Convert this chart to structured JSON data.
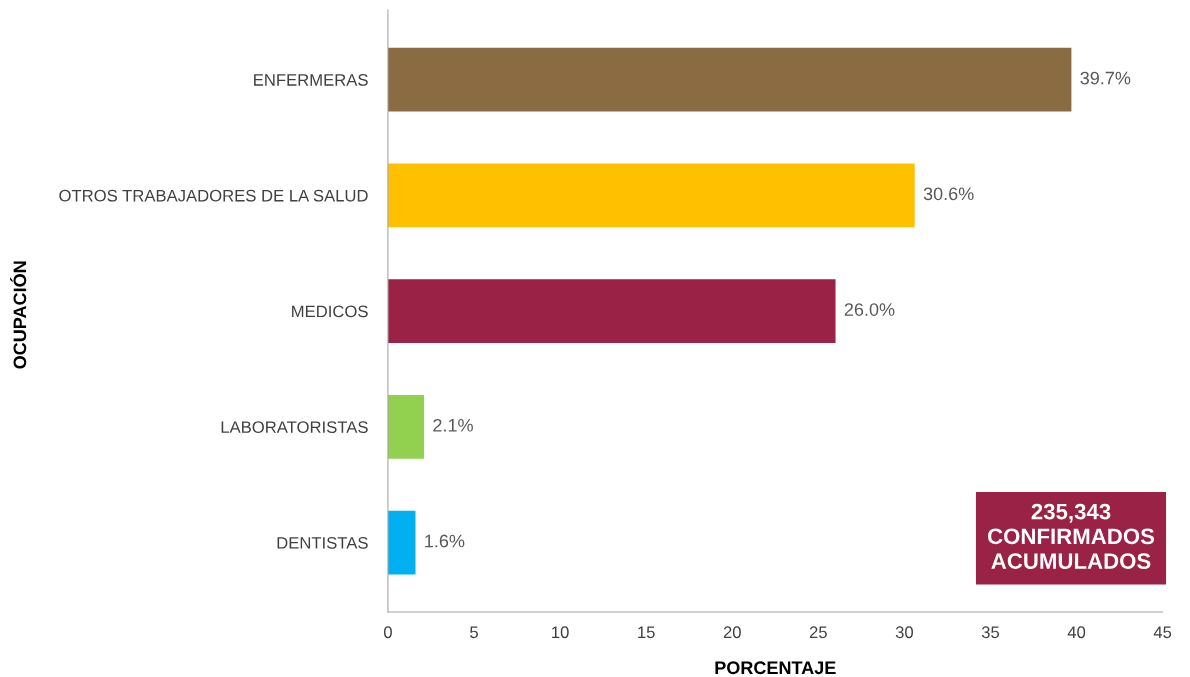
{
  "chart_data": {
    "type": "bar",
    "orientation": "horizontal",
    "xlabel": "PORCENTAJE",
    "ylabel": "OCUPACIÓN",
    "categories": [
      "ENFERMERAS",
      "OTROS TRABAJADORES DE LA SALUD",
      "MEDICOS",
      "LABORATORISTAS",
      "DENTISTAS"
    ],
    "values": [
      39.7,
      30.6,
      26.0,
      2.1,
      1.6
    ],
    "colors": [
      "#8b6b41",
      "#ffc000",
      "#9b2247",
      "#92d050",
      "#00b0f0"
    ],
    "value_labels": [
      "39.7%",
      "30.6%",
      "26.0%",
      "2.1%",
      "1.6%"
    ],
    "xlim": [
      0,
      45
    ],
    "xticks": [
      0,
      5,
      10,
      15,
      20,
      25,
      30,
      35,
      40,
      45
    ],
    "annotations": [
      "235,343\nCONFIRMADOS\nACUMULADOS"
    ]
  }
}
